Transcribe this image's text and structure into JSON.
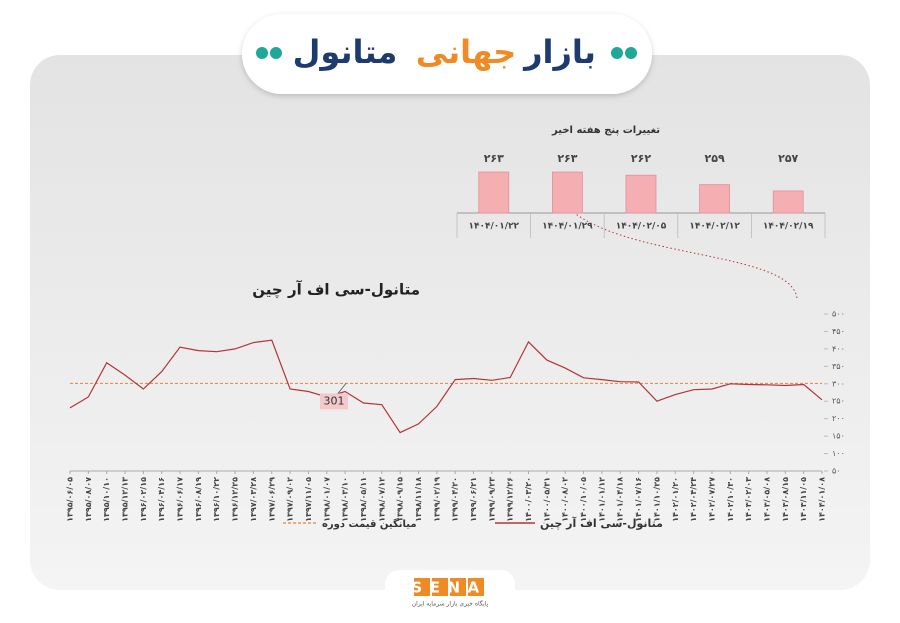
{
  "header": {
    "title_parts": [
      "بازار",
      "جهانی",
      "متانول"
    ]
  },
  "chart_data": [
    {
      "type": "bar",
      "title": "تغییرات پنج هفته اخیر",
      "categories": [
        "۱۴۰۴/۰۱/۲۲",
        "۱۴۰۴/۰۱/۲۹",
        "۱۴۰۴/۰۲/۰۵",
        "۱۴۰۴/۰۲/۱۲",
        "۱۴۰۴/۰۲/۱۹"
      ],
      "values": [
        263,
        263,
        262,
        259,
        257
      ],
      "value_labels": [
        "۲۶۳",
        "۲۶۳",
        "۲۶۲",
        "۲۵۹",
        "۲۵۷"
      ],
      "color": "#f5aeb2",
      "ylim": [
        250,
        270
      ]
    },
    {
      "type": "line",
      "title": "متانول-سی اف آر چین",
      "categories": [
        "۱۳۹۵/۰۶/۰۵",
        "۱۳۹۵/۰۸/۰۷",
        "۱۳۹۵/۱۰/۱۰",
        "۱۳۹۵/۱۲/۱۳",
        "۱۳۹۶/۰۲/۱۵",
        "۱۳۹۶/۰۴/۱۶",
        "۱۳۹۶/۰۶/۱۷",
        "۱۳۹۶/۰۸/۱۹",
        "۱۳۹۶/۱۰/۲۲",
        "۱۳۹۶/۱۲/۲۵",
        "۱۳۹۷/۰۳/۲۸",
        "۱۳۹۷/۰۶/۲۹",
        "۱۳۹۷/۰۹/۰۲",
        "۱۳۹۷/۱۱/۰۵",
        "۱۳۹۸/۰۱/۰۷",
        "۱۳۹۸/۰۳/۱۰",
        "۱۳۹۸/۰۵/۱۱",
        "۱۳۹۸/۰۷/۱۲",
        "۱۳۹۸/۰۹/۱۵",
        "۱۳۹۸/۱۱/۱۸",
        "۱۳۹۹/۰۲/۱۹",
        "۱۳۹۹/۰۴/۲۰",
        "۱۳۹۹/۰۶/۲۱",
        "۱۳۹۹/۰۹/۲۳",
        "۱۳۹۹/۱۲/۲۶",
        "۱۴۰۰/۰۳/۲۰",
        "۱۴۰۰/۰۵/۳۱",
        "۱۴۰۰/۰۸/۰۲",
        "۱۴۰۰/۱۰/۰۵",
        "۱۴۰۱/۰۱/۱۲",
        "۱۴۰۱/۰۴/۱۸",
        "۱۴۰۱/۰۷/۱۶",
        "۱۴۰۱/۱۰/۲۵",
        "۱۴۰۲/۰۱/۲۰",
        "۱۴۰۲/۰۴/۲۴",
        "۱۴۰۲/۰۷/۲۷",
        "۱۴۰۲/۱۰/۳۰",
        "۱۴۰۳/۰۲/۰۳",
        "۱۴۰۳/۰۵/۰۸",
        "۱۴۰۳/۰۸/۱۵",
        "۱۴۰۳/۱۱/۰۵",
        "۱۴۰۴/۰۱/۰۸"
      ],
      "series": [
        {
          "name": "متانول-سی اف آر چین",
          "color": "#b3343b",
          "values": [
            231,
            262,
            360,
            325,
            285,
            335,
            405,
            395,
            392,
            400,
            418,
            425,
            285,
            278,
            262,
            278,
            245,
            240,
            160,
            185,
            235,
            312,
            315,
            310,
            318,
            420,
            368,
            345,
            317,
            312,
            306,
            305,
            250,
            269,
            283,
            285,
            300,
            298,
            297,
            295,
            298,
            254
          ]
        }
      ],
      "average": {
        "name": "میانگین قیمت دوره",
        "value": 301,
        "color": "#e8833a"
      },
      "ylim": [
        50,
        500
      ],
      "yticks": [
        {
          "value": 50,
          "label": "۵۰"
        },
        {
          "value": 100,
          "label": "۱۰۰"
        },
        {
          "value": 150,
          "label": "۱۵۰"
        },
        {
          "value": 200,
          "label": "۲۰۰"
        },
        {
          "value": 250,
          "label": "۲۵۰"
        },
        {
          "value": 300,
          "label": "۳۰۰"
        },
        {
          "value": 350,
          "label": "۳۵۰"
        },
        {
          "value": 400,
          "label": "۴۰۰"
        },
        {
          "value": 450,
          "label": "۴۵۰"
        },
        {
          "value": 500,
          "label": "۵۰۰"
        }
      ]
    }
  ],
  "footer": {
    "logo": "SENA",
    "tagline": "پایگاه خبری بازار سرمایه ایران"
  }
}
